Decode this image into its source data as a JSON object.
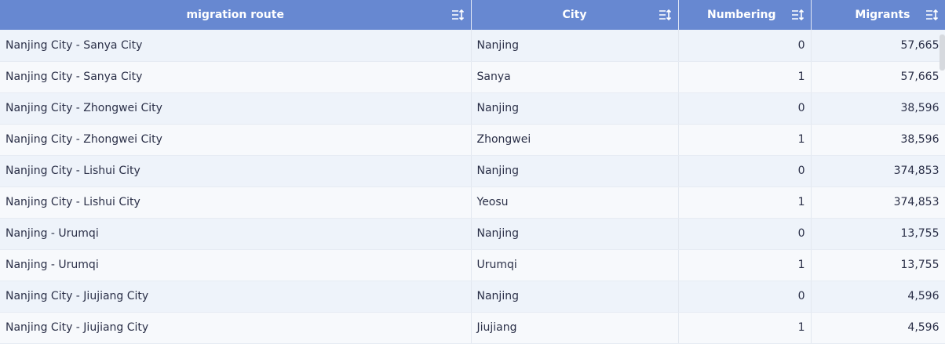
{
  "columns": [
    "migration route",
    "City",
    "Numbering",
    "Migrants"
  ],
  "rows": [
    [
      "Nanjing City - Sanya City",
      "Nanjing",
      "0",
      "57,665"
    ],
    [
      "Nanjing City - Sanya City",
      "Sanya",
      "1",
      "57,665"
    ],
    [
      "Nanjing City - Zhongwei City",
      "Nanjing",
      "0",
      "38,596"
    ],
    [
      "Nanjing City - Zhongwei City",
      "Zhongwei",
      "1",
      "38,596"
    ],
    [
      "Nanjing City - Lishui City",
      "Nanjing",
      "0",
      "374,853"
    ],
    [
      "Nanjing City - Lishui City",
      "Yeosu",
      "1",
      "374,853"
    ],
    [
      "Nanjing - Urumqi",
      "Nanjing",
      "0",
      "13,755"
    ],
    [
      "Nanjing - Urumqi",
      "Urumqi",
      "1",
      "13,755"
    ],
    [
      "Nanjing City - Jiujiang City",
      "Nanjing",
      "0",
      "4,596"
    ],
    [
      "Nanjing City - Jiujiang City",
      "Jiujiang",
      "1",
      "4,596"
    ]
  ],
  "colors": {
    "header": "#6788d1",
    "row_odd": "#eef3fa",
    "row_even": "#f7f9fc"
  },
  "icons": {
    "sort": "sort-icon"
  }
}
